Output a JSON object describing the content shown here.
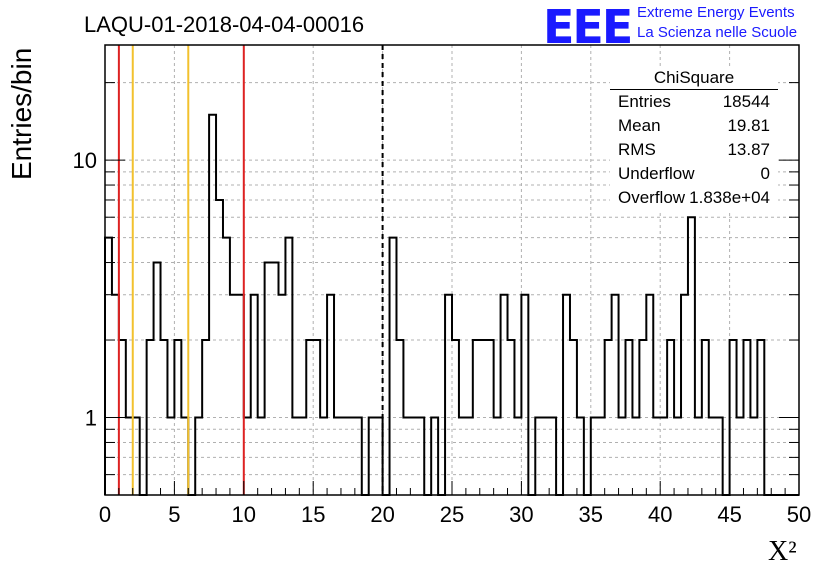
{
  "title": "LAQU-01-2018-04-04-00016",
  "logo": {
    "mark": "EEE",
    "line1": "Extreme Energy Events",
    "line2": "La Scienza nelle Scuole",
    "color": "#1a1aff"
  },
  "stats": {
    "title": "ChiSquare",
    "rows": [
      {
        "key": "Entries",
        "value": "18544"
      },
      {
        "key": "Mean",
        "value": "19.81"
      },
      {
        "key": "RMS",
        "value": "13.87"
      },
      {
        "key": "Underflow",
        "value": "0"
      },
      {
        "key": "Overflow",
        "value": "1.838e+04"
      }
    ]
  },
  "chart_data": {
    "type": "histogram",
    "xlabel": "X²",
    "ylabel": "Entries/bin",
    "xlim": [
      0,
      50
    ],
    "ylim": [
      0.5,
      28
    ],
    "yscale": "log",
    "grid": true,
    "bin_width": 0.5,
    "x_ticks": [
      0,
      5,
      10,
      15,
      20,
      25,
      30,
      35,
      40,
      45,
      50
    ],
    "y_tick_labels": [
      {
        "value": 1,
        "label": "1"
      },
      {
        "value": 10,
        "label": "10"
      }
    ],
    "bins": [
      {
        "x": 0.0,
        "y": 5
      },
      {
        "x": 0.5,
        "y": 3
      },
      {
        "x": 1.0,
        "y": 2
      },
      {
        "x": 1.5,
        "y": 1
      },
      {
        "x": 2.0,
        "y": 1
      },
      {
        "x": 2.5,
        "y": 0
      },
      {
        "x": 3.0,
        "y": 2
      },
      {
        "x": 3.5,
        "y": 4
      },
      {
        "x": 4.0,
        "y": 2
      },
      {
        "x": 4.5,
        "y": 1
      },
      {
        "x": 5.0,
        "y": 2
      },
      {
        "x": 5.5,
        "y": 1
      },
      {
        "x": 6.0,
        "y": 0
      },
      {
        "x": 6.5,
        "y": 1
      },
      {
        "x": 7.0,
        "y": 2
      },
      {
        "x": 7.5,
        "y": 15
      },
      {
        "x": 8.0,
        "y": 7
      },
      {
        "x": 8.5,
        "y": 5
      },
      {
        "x": 9.0,
        "y": 3
      },
      {
        "x": 9.5,
        "y": 3
      },
      {
        "x": 10.0,
        "y": 1
      },
      {
        "x": 10.5,
        "y": 3
      },
      {
        "x": 11.0,
        "y": 1
      },
      {
        "x": 11.5,
        "y": 4
      },
      {
        "x": 12.0,
        "y": 4
      },
      {
        "x": 12.5,
        "y": 3
      },
      {
        "x": 13.0,
        "y": 5
      },
      {
        "x": 13.5,
        "y": 1
      },
      {
        "x": 14.0,
        "y": 1
      },
      {
        "x": 14.5,
        "y": 2
      },
      {
        "x": 15.0,
        "y": 2
      },
      {
        "x": 15.5,
        "y": 1
      },
      {
        "x": 16.0,
        "y": 3
      },
      {
        "x": 16.5,
        "y": 1
      },
      {
        "x": 17.0,
        "y": 1
      },
      {
        "x": 17.5,
        "y": 1
      },
      {
        "x": 18.0,
        "y": 1
      },
      {
        "x": 18.5,
        "y": 0
      },
      {
        "x": 19.0,
        "y": 1
      },
      {
        "x": 19.5,
        "y": 1
      },
      {
        "x": 20.0,
        "y": 0
      },
      {
        "x": 20.5,
        "y": 5
      },
      {
        "x": 21.0,
        "y": 2
      },
      {
        "x": 21.5,
        "y": 1
      },
      {
        "x": 22.0,
        "y": 1
      },
      {
        "x": 22.5,
        "y": 1
      },
      {
        "x": 23.0,
        "y": 0
      },
      {
        "x": 23.5,
        "y": 1
      },
      {
        "x": 24.0,
        "y": 0
      },
      {
        "x": 24.5,
        "y": 3
      },
      {
        "x": 25.0,
        "y": 2
      },
      {
        "x": 25.5,
        "y": 1
      },
      {
        "x": 26.0,
        "y": 1
      },
      {
        "x": 26.5,
        "y": 2
      },
      {
        "x": 27.0,
        "y": 2
      },
      {
        "x": 27.5,
        "y": 2
      },
      {
        "x": 28.0,
        "y": 1
      },
      {
        "x": 28.5,
        "y": 3
      },
      {
        "x": 29.0,
        "y": 2
      },
      {
        "x": 29.5,
        "y": 1
      },
      {
        "x": 30.0,
        "y": 3
      },
      {
        "x": 30.5,
        "y": 0
      },
      {
        "x": 31.0,
        "y": 1
      },
      {
        "x": 31.5,
        "y": 1
      },
      {
        "x": 32.0,
        "y": 1
      },
      {
        "x": 32.5,
        "y": 0
      },
      {
        "x": 33.0,
        "y": 3
      },
      {
        "x": 33.5,
        "y": 2
      },
      {
        "x": 34.0,
        "y": 1
      },
      {
        "x": 34.5,
        "y": 0
      },
      {
        "x": 35.0,
        "y": 1
      },
      {
        "x": 35.5,
        "y": 1
      },
      {
        "x": 36.0,
        "y": 2
      },
      {
        "x": 36.5,
        "y": 3
      },
      {
        "x": 37.0,
        "y": 1
      },
      {
        "x": 37.5,
        "y": 2
      },
      {
        "x": 38.0,
        "y": 1
      },
      {
        "x": 38.5,
        "y": 2
      },
      {
        "x": 39.0,
        "y": 3
      },
      {
        "x": 39.5,
        "y": 1
      },
      {
        "x": 40.0,
        "y": 1
      },
      {
        "x": 40.5,
        "y": 2
      },
      {
        "x": 41.0,
        "y": 1
      },
      {
        "x": 41.5,
        "y": 3
      },
      {
        "x": 42.0,
        "y": 6
      },
      {
        "x": 42.5,
        "y": 1
      },
      {
        "x": 43.0,
        "y": 2
      },
      {
        "x": 43.5,
        "y": 1
      },
      {
        "x": 44.0,
        "y": 1
      },
      {
        "x": 44.5,
        "y": 0
      },
      {
        "x": 45.0,
        "y": 2
      },
      {
        "x": 45.5,
        "y": 1
      },
      {
        "x": 46.0,
        "y": 2
      },
      {
        "x": 46.5,
        "y": 1
      },
      {
        "x": 47.0,
        "y": 2
      },
      {
        "x": 47.5,
        "y": 0
      },
      {
        "x": 48.0,
        "y": 0
      },
      {
        "x": 48.5,
        "y": 0
      },
      {
        "x": 49.0,
        "y": 0
      },
      {
        "x": 49.5,
        "y": 0
      }
    ],
    "vertical_lines": [
      {
        "x": 1,
        "color": "#dd2222",
        "style": "solid"
      },
      {
        "x": 2,
        "color": "#f2c12e",
        "style": "solid"
      },
      {
        "x": 6,
        "color": "#f2c12e",
        "style": "solid"
      },
      {
        "x": 10,
        "color": "#dd2222",
        "style": "solid"
      },
      {
        "x": 20,
        "color": "#000000",
        "style": "dashed"
      }
    ]
  }
}
